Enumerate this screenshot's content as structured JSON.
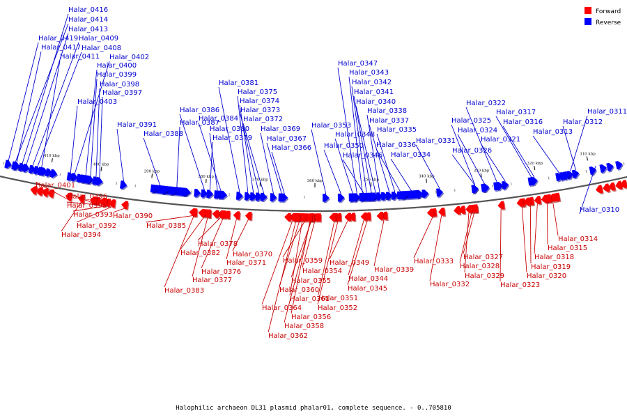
{
  "caption": "Halophilic archaeon DL31 plasmid phalar01, complete sequence. - 0..705810",
  "legend": [
    {
      "label": "Forward",
      "color": "#ff0000"
    },
    {
      "label": "Reverse",
      "color": "#0000ff"
    }
  ],
  "colors": {
    "forward": "#ff0000",
    "reverse": "#0000ff",
    "forward_label": "#c80000",
    "reverse_label": "#0000d0",
    "backbone": "#555555"
  },
  "ticks": [
    "410 kbp",
    "400 kbp",
    "390 kbp",
    "380 kbp",
    "370 kbp",
    "360 kbp",
    "350 kbp",
    "340 kbp",
    "330 kbp",
    "320 kbp",
    "310 kbp"
  ],
  "reverse_genes": [
    "Halar_0416",
    "Halar_0414",
    "Halar_0413",
    "Halar_0419",
    "Halar_0409",
    "Halar_0417",
    "Halar_0408",
    "Halar_0411",
    "Halar_0402",
    "Halar_0400",
    "Halar_0399",
    "Halar_0398",
    "Halar_0397",
    "Halar_0403",
    "Halar_0391",
    "Halar_0387",
    "Halar_0388",
    "Halar_0386",
    "Halar_0384",
    "Halar_0380",
    "Halar_0379",
    "Halar_0381",
    "Halar_0375",
    "Halar_0374",
    "Halar_0373",
    "Halar_0372",
    "Halar_0369",
    "Halar_0367",
    "Halar_0366",
    "Halar_0347",
    "Halar_0343",
    "Halar_0342",
    "Halar_0341",
    "Halar_0340",
    "Halar_0338",
    "Halar_0337",
    "Halar_0335",
    "Halar_0353",
    "Halar_0348",
    "Halar_0350",
    "Halar_0346",
    "Halar_0336",
    "Halar_0334",
    "Halar_0331",
    "Halar_0322",
    "Halar_0325",
    "Halar_0324",
    "Halar_0326",
    "Halar_0321",
    "Halar_0317",
    "Halar_0316",
    "Halar_0313",
    "Halar_0311",
    "Halar_0312",
    "Halar_0310"
  ],
  "forward_genes": [
    "Halar_0401",
    "Halar_0396",
    "Halar_0395",
    "Halar_0393",
    "Halar_0392",
    "Halar_0394",
    "Halar_0390",
    "Halar_0385",
    "Halar_0378",
    "Halar_0382",
    "Halar_0376",
    "Halar_0377",
    "Halar_0383",
    "Halar_0370",
    "Halar_0371",
    "Halar_0359",
    "Halar_0354",
    "Halar_0355",
    "Halar_0360",
    "Halar_0361",
    "Halar_0364",
    "Halar_0356",
    "Halar_0358",
    "Halar_0362",
    "Halar_0349",
    "Halar_0351",
    "Halar_0352",
    "Halar_0344",
    "Halar_0345",
    "Halar_0339",
    "Halar_0333",
    "Halar_0332",
    "Halar_0327",
    "Halar_0328",
    "Halar_0329",
    "Halar_0323",
    "Halar_0314",
    "Halar_0315",
    "Halar_0318",
    "Halar_0319",
    "Halar_0320"
  ]
}
